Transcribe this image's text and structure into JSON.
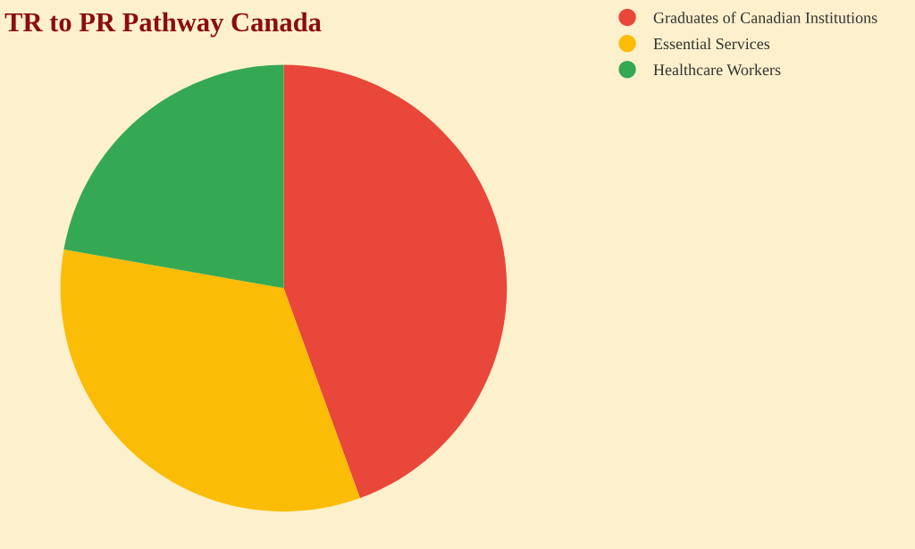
{
  "chart_data": {
    "type": "pie",
    "title": "TR to PR Pathway Canada",
    "categories": [
      "Graduates of Canadian Institutions",
      "Essential Services",
      "Healthcare Workers"
    ],
    "values": [
      44.4,
      33.3,
      22.2
    ],
    "colors": [
      "#e8473a",
      "#fbbc05",
      "#34a853"
    ],
    "legend": "top right"
  }
}
